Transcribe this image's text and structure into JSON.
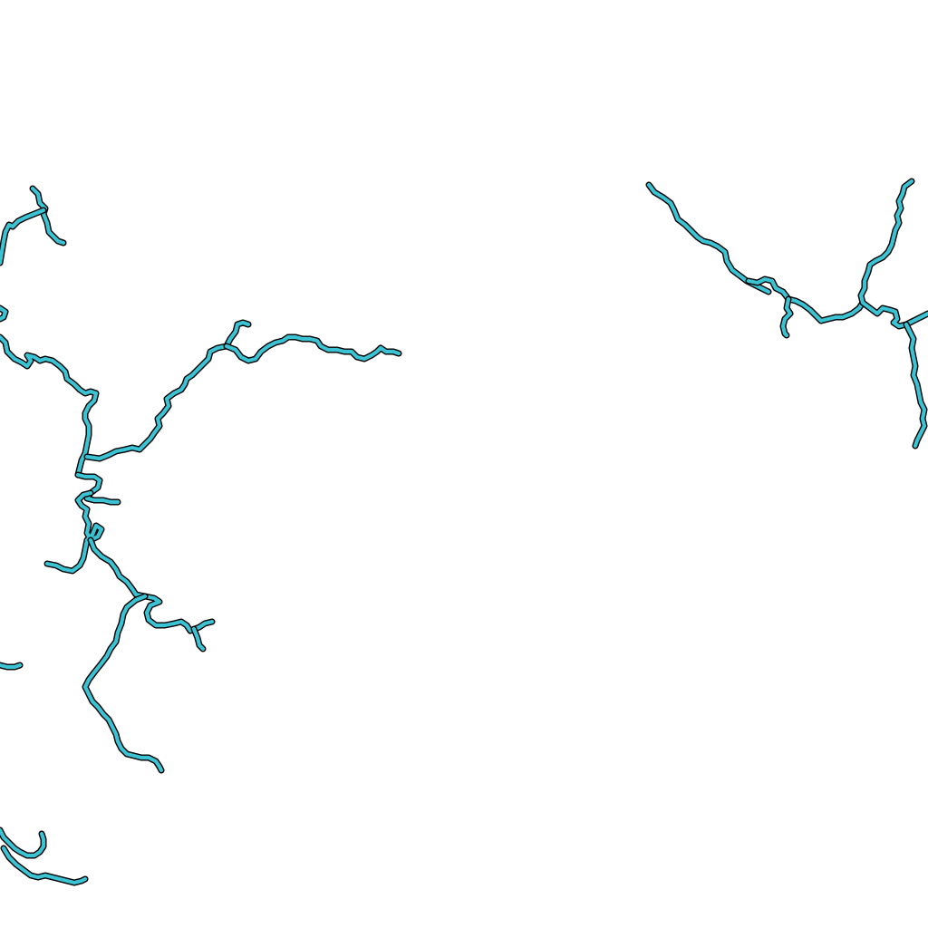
{
  "map": {
    "background_color": "#ffffff",
    "feature_type": "waterways",
    "river_color": "#3cc3d3",
    "outline_color": "#000000",
    "labels": []
  }
}
